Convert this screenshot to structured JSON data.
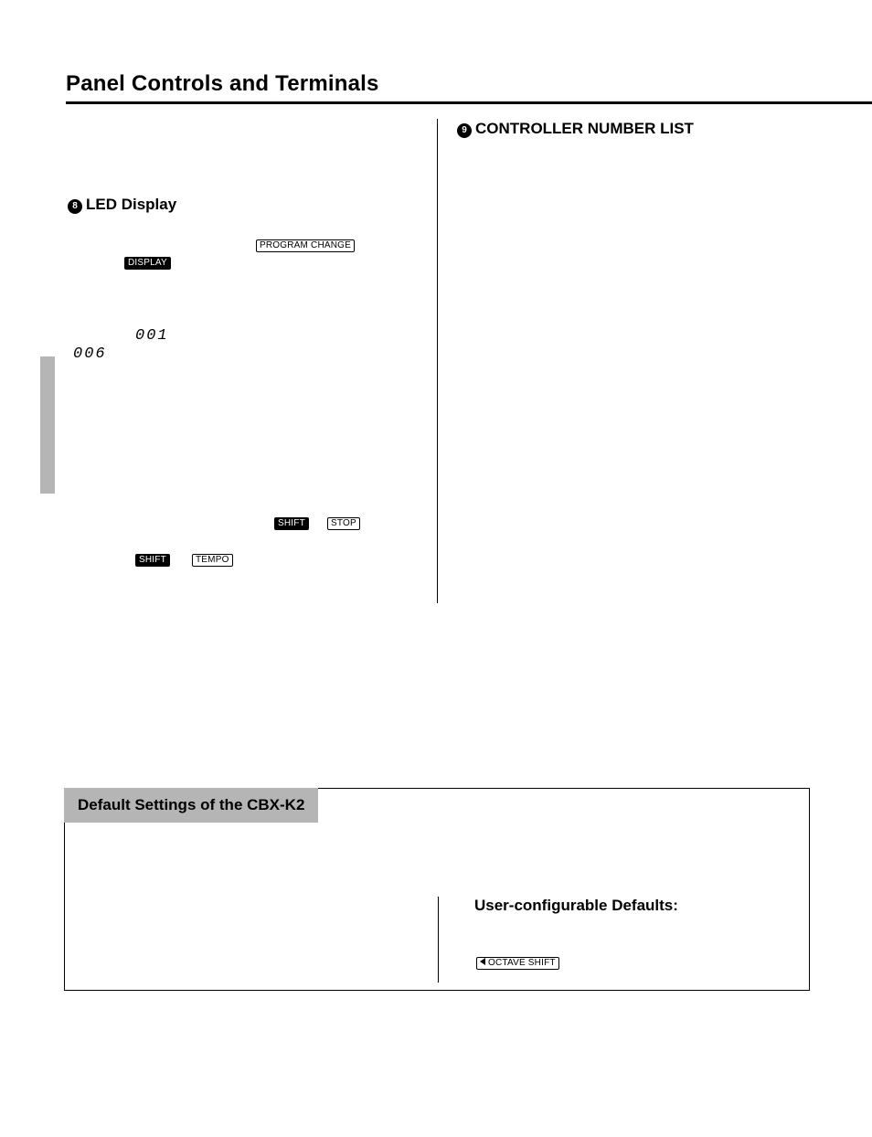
{
  "colors": {
    "bg": "#ffffff",
    "text": "#000000",
    "tab_grey": "#b5b5b5",
    "key_border": "#000000"
  },
  "page_title": "Panel Controls and Terminals",
  "left_col": {
    "bullet": "8",
    "heading": "LED Display",
    "keys": {
      "program_change": "PROGRAM CHANGE",
      "display": "DISPLAY",
      "shift_1": "SHIFT",
      "stop": "STOP",
      "shift_2": "SHIFT",
      "tempo": "TEMPO"
    },
    "seg_001": "001",
    "seg_006": "006"
  },
  "right_col": {
    "bullet": "9",
    "heading": "CONTROLLER NUMBER LIST"
  },
  "defaults_box": {
    "title": "Default Settings of the CBX-K2",
    "user_conf_heading": "User-configurable Defaults:",
    "octave_shift_label": "OCTAVE SHIFT"
  }
}
